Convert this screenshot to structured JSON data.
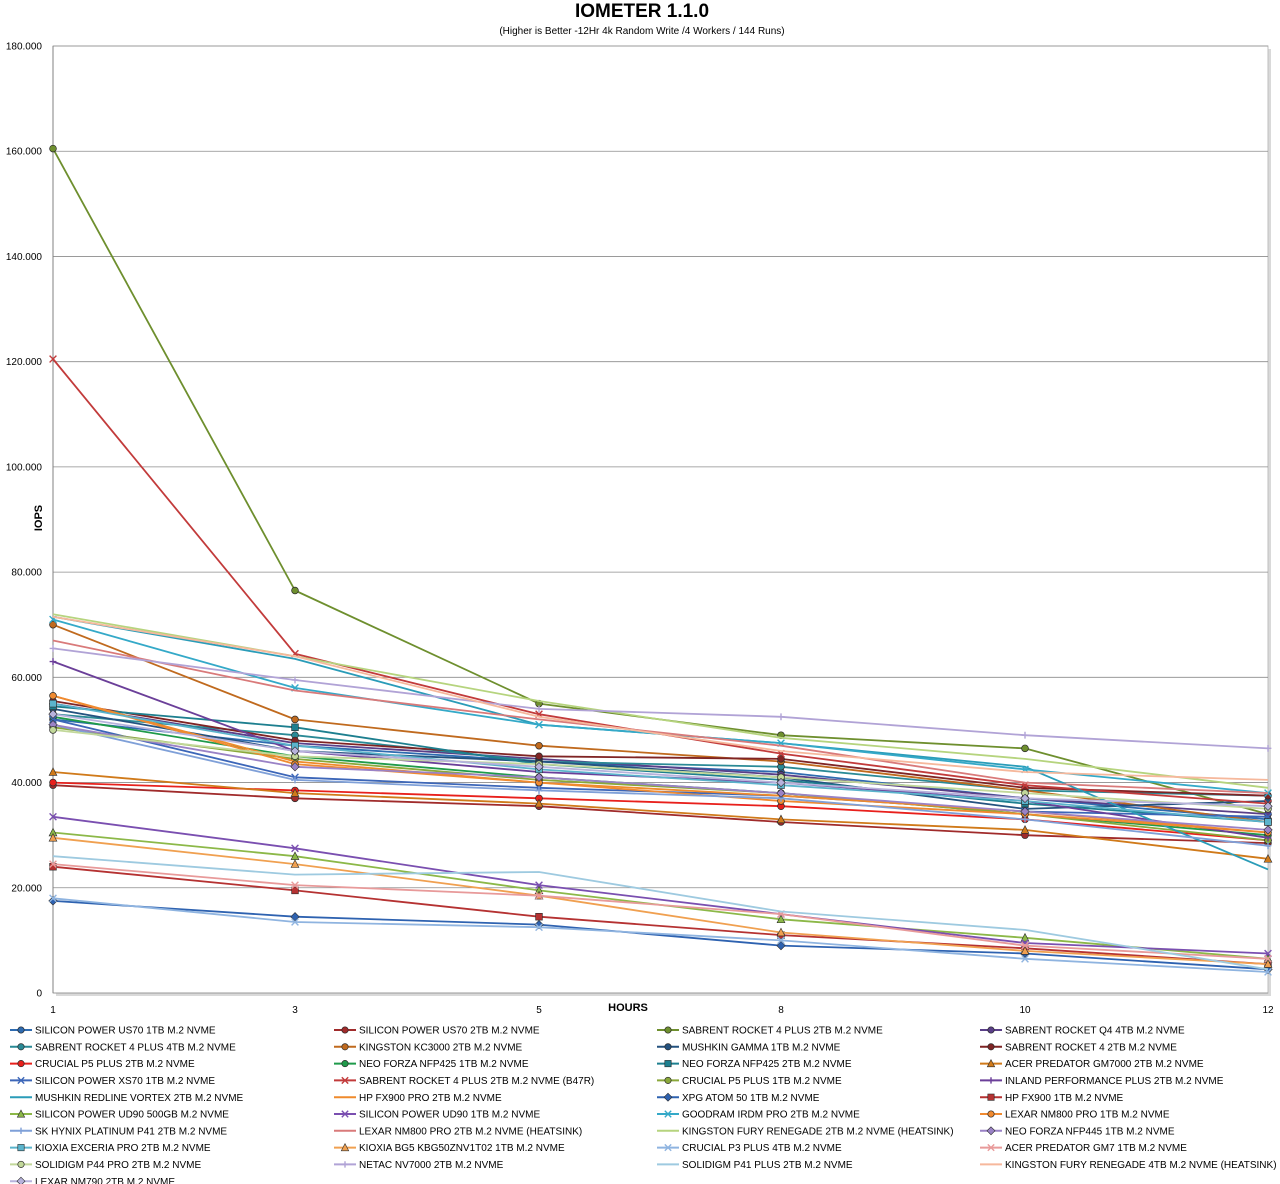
{
  "chart_data": {
    "type": "line",
    "title": "IOMETER 1.1.0",
    "subtitle": "(Higher is Better -12Hr 4k Random Write /4 Workers / 144 Runs)",
    "xlabel": "HOURS",
    "ylabel": "IOPS",
    "x": [
      "1",
      "3",
      "5",
      "8",
      "10",
      "12"
    ],
    "y_ticks": [
      "0",
      "20.000",
      "40.000",
      "60.000",
      "80.000",
      "100.000",
      "120.000",
      "140.000",
      "160.000",
      "180.000"
    ],
    "ylim": [
      0,
      180000
    ],
    "grid": true,
    "legend_position": "bottom",
    "series": [
      {
        "name": "SILICON POWER US70 1TB M.2 NVME",
        "color": "#2e6bb0",
        "marker": "circle",
        "values": [
          52000,
          47000,
          44000,
          42000,
          37000,
          33000
        ]
      },
      {
        "name": "SILICON POWER US70 2TB M.2 NVME",
        "color": "#a02b2b",
        "marker": "circle",
        "values": [
          39500,
          37000,
          35500,
          32500,
          30000,
          28500
        ]
      },
      {
        "name": "SABRENT ROCKET 4 PLUS 2TB M.2 NVME",
        "color": "#6e8f2e",
        "marker": "circle",
        "values": [
          160500,
          76500,
          55000,
          49000,
          46500,
          34000
        ]
      },
      {
        "name": "SABRENT ROCKET Q4 4TB M.2 NVME",
        "color": "#5a3f88",
        "marker": "circle",
        "values": [
          55000,
          47500,
          44500,
          41500,
          37000,
          34000
        ]
      },
      {
        "name": "SABRENT ROCKET 4 PLUS 4TB M.2 NVME",
        "color": "#2a8a96",
        "marker": "circle",
        "values": [
          53000,
          49000,
          44000,
          43000,
          38500,
          37500
        ]
      },
      {
        "name": "KINGSTON KC3000 2TB M.2 NVME",
        "color": "#c06a1e",
        "marker": "circle",
        "values": [
          70000,
          52000,
          47000,
          44000,
          38500,
          32500
        ]
      },
      {
        "name": "MUSHKIN GAMMA 1TB M.2 NVME",
        "color": "#24527f",
        "marker": "circle",
        "values": [
          54000,
          46000,
          44000,
          41000,
          35000,
          36500
        ]
      },
      {
        "name": "SABRENT ROCKET 4 2TB M.2 NVME",
        "color": "#7f2424",
        "marker": "circle",
        "values": [
          55500,
          48000,
          45000,
          44500,
          39000,
          37500
        ]
      },
      {
        "name": "CRUCIAL P5 PLUS 2TB M.2 NVME",
        "color": "#e8201c",
        "marker": "circle",
        "values": [
          40000,
          38500,
          37000,
          35500,
          33000,
          29000
        ]
      },
      {
        "name": "NEO FORZA NFP425 1TB M.2 NVME",
        "color": "#1f9a4a",
        "marker": "circle",
        "values": [
          52500,
          45000,
          41000,
          38000,
          34000,
          30000
        ]
      },
      {
        "name": "NEO FORZA NFP425 2TB M.2 NVME",
        "color": "#1d7f8f",
        "marker": "square",
        "values": [
          54500,
          50500,
          43500,
          40500,
          36000,
          32500
        ]
      },
      {
        "name": "ACER PREDATOR GM7000 2TB M.2 NVME",
        "color": "#d07a1a",
        "marker": "triangle",
        "values": [
          42000,
          38000,
          36000,
          33000,
          31000,
          25500
        ]
      },
      {
        "name": "SILICON POWER XS70 1TB M.2 NVME",
        "color": "#3c66b8",
        "marker": "x",
        "values": [
          52000,
          41000,
          39000,
          37500,
          34500,
          33500
        ]
      },
      {
        "name": "SABRENT ROCKET 4 PLUS 2TB M.2 NVME (B47R)",
        "color": "#c23b3b",
        "marker": "x",
        "values": [
          120500,
          64500,
          53000,
          45500,
          39500,
          36000
        ]
      },
      {
        "name": "CRUCIAL P5 PLUS 1TB M.2 NVME",
        "color": "#8aa83a",
        "marker": "circle",
        "values": [
          50500,
          44500,
          40500,
          38000,
          34000,
          29000
        ]
      },
      {
        "name": "INLAND PERFORMANCE PLUS 2TB M.2 NVME",
        "color": "#6b3f99",
        "marker": "plus",
        "values": [
          63000,
          46000,
          42000,
          40000,
          36500,
          29500
        ]
      },
      {
        "name": "MUSHKIN REDLINE VORTEX 2TB M.2 NVME",
        "color": "#2a9cb8",
        "marker": "none",
        "values": [
          71500,
          63500,
          51000,
          47500,
          43000,
          23500
        ]
      },
      {
        "name": "HP FX900 PRO 2TB M.2 NVME",
        "color": "#ef8a2c",
        "marker": "none",
        "values": [
          56500,
          44000,
          40000,
          37500,
          34500,
          30500
        ]
      },
      {
        "name": "XPG ATOM 50 1TB M.2 NVME",
        "color": "#2e62b0",
        "marker": "diamond",
        "values": [
          17500,
          14500,
          13000,
          9000,
          7500,
          4500
        ]
      },
      {
        "name": "HP FX900 1TB M.2 NVME",
        "color": "#b53232",
        "marker": "square",
        "values": [
          24000,
          19500,
          14500,
          11000,
          8500,
          5500
        ]
      },
      {
        "name": "SILICON POWER UD90 500GB M.2 NVME",
        "color": "#8cb848",
        "marker": "triangle",
        "values": [
          30500,
          26000,
          19500,
          14000,
          10500,
          6500
        ]
      },
      {
        "name": "SILICON POWER UD90 1TB M.2 NVME",
        "color": "#7a4fb0",
        "marker": "x",
        "values": [
          33500,
          27500,
          20500,
          15000,
          9500,
          7500
        ]
      },
      {
        "name": "GOODRAM IRDM PRO 2TB M.2 NVME",
        "color": "#34a9c8",
        "marker": "x",
        "values": [
          71000,
          58000,
          51000,
          47500,
          42500,
          38000
        ]
      },
      {
        "name": "LEXAR NM800 PRO 1TB M.2 NVME",
        "color": "#f08a30",
        "marker": "circle",
        "values": [
          56500,
          43500,
          40000,
          36500,
          34000,
          30500
        ]
      },
      {
        "name": "SK HYNIX PLATINUM P41 2TB M.2 NVME",
        "color": "#7fa0d8",
        "marker": "plus",
        "values": [
          51000,
          40500,
          38500,
          37000,
          33000,
          28000
        ]
      },
      {
        "name": "LEXAR NM800 PRO 2TB M.2 NVME (HEATSINK)",
        "color": "#d97a7a",
        "marker": "none",
        "values": [
          67000,
          57500,
          52000,
          47000,
          40000,
          38000
        ]
      },
      {
        "name": "KINGSTON FURY RENEGADE 2TB M.2 NVME (HEATSINK)",
        "color": "#b6d47e",
        "marker": "none",
        "values": [
          72000,
          64000,
          55500,
          48500,
          44500,
          39000
        ]
      },
      {
        "name": "NEO FORZA NFP445 1TB M.2 NVME",
        "color": "#9a82c6",
        "marker": "diamond",
        "values": [
          51000,
          43000,
          41000,
          38000,
          34500,
          31000
        ]
      },
      {
        "name": "KIOXIA EXCERIA PRO 2TB M.2 NVME",
        "color": "#5bb4cc",
        "marker": "square",
        "values": [
          55000,
          47000,
          42500,
          39500,
          36500,
          32500
        ]
      },
      {
        "name": "KIOXIA BG5 KBG50ZNV1T02 1TB M.2 NVME",
        "color": "#f0a050",
        "marker": "triangle",
        "values": [
          29500,
          24500,
          18500,
          11500,
          8000,
          5500
        ]
      },
      {
        "name": "CRUCIAL P3 PLUS 4TB M.2 NVME",
        "color": "#8fb4e0",
        "marker": "x",
        "values": [
          18000,
          13500,
          12500,
          10000,
          6500,
          4000
        ]
      },
      {
        "name": "ACER PREDATOR GM7 1TB M.2 NVME",
        "color": "#e89a9a",
        "marker": "x",
        "values": [
          24500,
          20500,
          18500,
          15000,
          9000,
          6500
        ]
      },
      {
        "name": "SOLIDIGM P44 PRO 2TB M.2 NVME",
        "color": "#c2d89a",
        "marker": "circle",
        "values": [
          50000,
          45000,
          43500,
          41000,
          38000,
          35000
        ]
      },
      {
        "name": "NETAC NV7000 2TB M.2 NVME",
        "color": "#b1a3d6",
        "marker": "plus",
        "values": [
          65500,
          59500,
          54000,
          52500,
          49000,
          46500
        ]
      },
      {
        "name": "SOLIDIGM P41 PLUS 2TB M.2 NVME",
        "color": "#9ecae0",
        "marker": "none",
        "values": [
          26000,
          22500,
          23000,
          15500,
          12000,
          4500
        ]
      },
      {
        "name": "KINGSTON FURY RENEGADE 4TB M.2 NVME (HEATSINK)",
        "color": "#f6b89c",
        "marker": "none",
        "values": [
          71500,
          64000,
          52500,
          46000,
          42000,
          40500
        ]
      },
      {
        "name": "LEXAR NM790 2TB M.2 NVME",
        "color": "#b7b2dc",
        "marker": "diamond",
        "values": [
          53000,
          46000,
          43000,
          40000,
          37000,
          35500
        ]
      }
    ]
  }
}
